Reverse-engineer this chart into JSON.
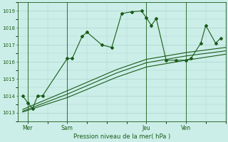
{
  "title": "Pression niveau de la mer( hPa )",
  "bg_color": "#cceee8",
  "grid_color": "#aad4cc",
  "line_color": "#1a5c1a",
  "ylim": [
    1012.5,
    1019.5
  ],
  "yticks": [
    1013,
    1014,
    1015,
    1016,
    1017,
    1018,
    1019
  ],
  "day_labels": [
    "Mer",
    "Sam",
    "Jeu",
    "Ven"
  ],
  "day_positions": [
    2,
    10,
    26,
    34
  ],
  "xlim": [
    0,
    42
  ],
  "series1_x": [
    1,
    2,
    3,
    4,
    5,
    10,
    11,
    13,
    14,
    17,
    19,
    21,
    23,
    25,
    26,
    27,
    28,
    30,
    32,
    34,
    35,
    37,
    38,
    40,
    41
  ],
  "series1_y": [
    1014.0,
    1013.6,
    1013.25,
    1014.0,
    1014.0,
    1016.2,
    1016.2,
    1017.5,
    1017.75,
    1017.0,
    1016.85,
    1018.85,
    1018.95,
    1019.0,
    1018.6,
    1018.15,
    1018.55,
    1016.1,
    1016.1,
    1016.1,
    1016.2,
    1017.1,
    1018.15,
    1017.1,
    1017.4
  ],
  "series2_x": [
    1,
    10,
    20,
    26,
    34,
    42
  ],
  "series2_y": [
    1013.2,
    1014.3,
    1015.55,
    1016.15,
    1016.55,
    1016.85
  ],
  "series3_x": [
    1,
    10,
    20,
    26,
    34,
    42
  ],
  "series3_y": [
    1013.1,
    1014.1,
    1015.35,
    1015.95,
    1016.35,
    1016.65
  ],
  "series4_x": [
    1,
    10,
    20,
    26,
    34,
    42
  ],
  "series4_y": [
    1013.05,
    1013.9,
    1015.1,
    1015.7,
    1016.1,
    1016.45
  ]
}
